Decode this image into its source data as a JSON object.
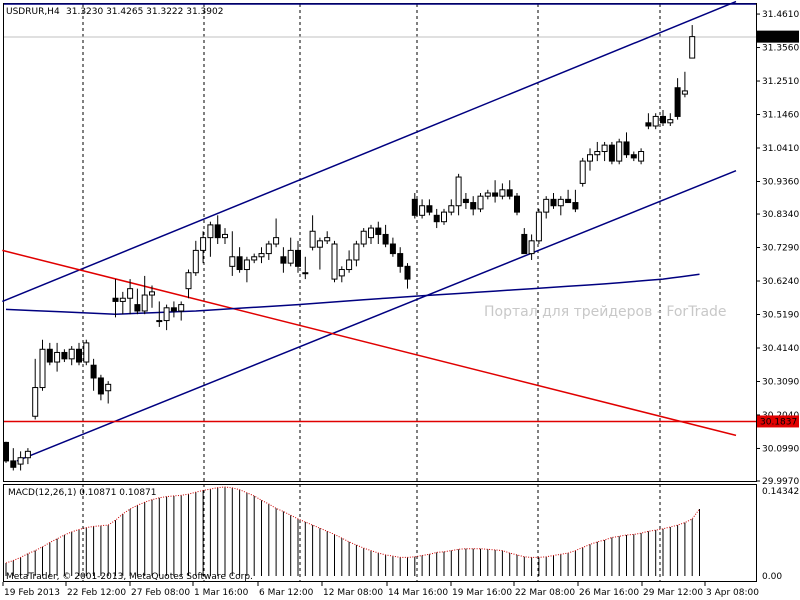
{
  "header": {
    "symbol": "USDRUR,H4",
    "ohlc": "31.3230 31.4265 31.3222 31.3902"
  },
  "watermark": "Портал для трейдеров - ForTrade",
  "copyright": "MetaTrader, © 2001-2013, MetaQuotes Software Corp.",
  "macd": {
    "label": "MACD(12,26,1) 0.10871 0.10871",
    "axis_labels": [
      "0.14342",
      "0.00"
    ]
  },
  "price_axis": {
    "labels": [
      "31.4610",
      "31.3560",
      "31.2510",
      "31.1460",
      "31.0410",
      "30.9360",
      "30.8340",
      "30.7290",
      "30.6240",
      "30.5190",
      "30.4140",
      "30.3090",
      "30.2040",
      "30.0990",
      "29.9970"
    ],
    "current_price": "31.3902",
    "hline_price": "30.1837"
  },
  "time_axis": {
    "labels": [
      "19 Feb 2013",
      "22 Feb 12:00",
      "27 Feb 08:00",
      "1 Mar 16:00",
      "6 Mar 12:00",
      "12 Mar 08:00",
      "14 Mar 16:00",
      "19 Mar 16:00",
      "22 Mar 08:00",
      "26 Mar 16:00",
      "29 Mar 12:00",
      "3 Apr 08:00"
    ]
  },
  "colors": {
    "channel": "#000080",
    "redline": "#e00000",
    "macd_bar": "#000000",
    "signal": "#cc0000",
    "grid": "#000000"
  },
  "chart_data": {
    "type": "candlestick",
    "ymin": 29.997,
    "ymax": 31.4925,
    "candles": [
      [
        30.118,
        30.12,
        30.054,
        30.06
      ],
      [
        30.06,
        30.1,
        30.03,
        30.04
      ],
      [
        30.05,
        30.09,
        30.03,
        30.07
      ],
      [
        30.07,
        30.1,
        30.05,
        30.09
      ],
      [
        30.2,
        30.38,
        30.19,
        30.29
      ],
      [
        30.29,
        30.44,
        30.28,
        30.41
      ],
      [
        30.41,
        30.43,
        30.36,
        30.37
      ],
      [
        30.37,
        30.43,
        30.34,
        30.4
      ],
      [
        30.4,
        30.41,
        30.37,
        30.38
      ],
      [
        30.38,
        30.42,
        30.36,
        30.41
      ],
      [
        30.41,
        30.43,
        30.36,
        30.37
      ],
      [
        30.37,
        30.44,
        30.36,
        30.43
      ],
      [
        30.36,
        30.38,
        30.28,
        30.32
      ],
      [
        30.32,
        30.33,
        30.25,
        30.27
      ],
      [
        30.28,
        30.31,
        30.24,
        30.3
      ],
      [
        30.57,
        30.63,
        30.51,
        30.56
      ],
      [
        30.56,
        30.59,
        30.52,
        30.57
      ],
      [
        30.57,
        30.63,
        30.52,
        30.6
      ],
      [
        30.55,
        30.6,
        30.52,
        30.53
      ],
      [
        30.53,
        30.64,
        30.52,
        30.58
      ],
      [
        30.58,
        30.61,
        30.54,
        30.59
      ],
      [
        30.5,
        30.56,
        30.48,
        30.5
      ],
      [
        30.5,
        30.55,
        30.47,
        30.54
      ],
      [
        30.54,
        30.56,
        30.51,
        30.53
      ],
      [
        30.53,
        30.56,
        30.5,
        30.55
      ],
      [
        30.6,
        30.66,
        30.57,
        30.65
      ],
      [
        30.65,
        30.75,
        30.64,
        30.72
      ],
      [
        30.72,
        30.78,
        30.68,
        30.76
      ],
      [
        30.76,
        30.81,
        30.7,
        30.8
      ],
      [
        30.8,
        30.83,
        30.74,
        30.76
      ],
      [
        30.76,
        30.79,
        30.74,
        30.77
      ],
      [
        30.67,
        30.78,
        30.64,
        30.7
      ],
      [
        30.7,
        30.73,
        30.65,
        30.66
      ],
      [
        30.66,
        30.7,
        30.62,
        30.69
      ],
      [
        30.69,
        30.71,
        30.68,
        30.7
      ],
      [
        30.7,
        30.73,
        30.68,
        30.71
      ],
      [
        30.71,
        30.75,
        30.69,
        30.74
      ],
      [
        30.74,
        30.82,
        30.73,
        30.76
      ],
      [
        30.7,
        30.73,
        30.65,
        30.68
      ],
      [
        30.68,
        30.76,
        30.67,
        30.72
      ],
      [
        30.72,
        30.75,
        30.65,
        30.67
      ],
      [
        30.65,
        30.7,
        30.63,
        30.65
      ],
      [
        30.73,
        30.83,
        30.72,
        30.78
      ],
      [
        30.73,
        30.76,
        30.66,
        30.75
      ],
      [
        30.75,
        30.78,
        30.74,
        30.76
      ],
      [
        30.63,
        30.75,
        30.62,
        30.74
      ],
      [
        30.64,
        30.67,
        30.62,
        30.66
      ],
      [
        30.66,
        30.72,
        30.65,
        30.69
      ],
      [
        30.69,
        30.75,
        30.67,
        30.74
      ],
      [
        30.74,
        30.79,
        30.73,
        30.78
      ],
      [
        30.76,
        30.8,
        30.74,
        30.79
      ],
      [
        30.79,
        30.81,
        30.74,
        30.77
      ],
      [
        30.77,
        30.8,
        30.73,
        30.74
      ],
      [
        30.74,
        30.76,
        30.7,
        30.71
      ],
      [
        30.71,
        30.73,
        30.65,
        30.67
      ],
      [
        30.67,
        30.68,
        30.6,
        30.63
      ],
      [
        30.88,
        30.9,
        30.82,
        30.83
      ],
      [
        30.83,
        30.88,
        30.82,
        30.86
      ],
      [
        30.86,
        30.88,
        30.83,
        30.84
      ],
      [
        30.83,
        30.85,
        30.79,
        30.81
      ],
      [
        30.81,
        30.85,
        30.8,
        30.84
      ],
      [
        30.84,
        30.88,
        30.83,
        30.86
      ],
      [
        30.86,
        30.96,
        30.83,
        30.95
      ],
      [
        30.88,
        30.9,
        30.85,
        30.87
      ],
      [
        30.87,
        30.89,
        30.83,
        30.85
      ],
      [
        30.85,
        30.9,
        30.84,
        30.89
      ],
      [
        30.89,
        30.91,
        30.88,
        30.9
      ],
      [
        30.9,
        30.94,
        30.87,
        30.89
      ],
      [
        30.89,
        30.93,
        30.88,
        30.91
      ],
      [
        30.91,
        30.94,
        30.88,
        30.89
      ],
      [
        30.89,
        30.9,
        30.83,
        30.84
      ],
      [
        30.77,
        30.79,
        30.71,
        30.71
      ],
      [
        30.71,
        30.77,
        30.69,
        30.75
      ],
      [
        30.75,
        30.85,
        30.74,
        30.84
      ],
      [
        30.84,
        30.89,
        30.82,
        30.88
      ],
      [
        30.88,
        30.9,
        30.85,
        30.86
      ],
      [
        30.86,
        30.89,
        30.83,
        30.88
      ],
      [
        30.88,
        30.91,
        30.87,
        30.87
      ],
      [
        30.87,
        30.91,
        30.84,
        30.85
      ],
      [
        30.93,
        31.01,
        30.92,
        31.0
      ],
      [
        31.0,
        31.04,
        30.97,
        31.02
      ],
      [
        31.02,
        31.06,
        31.0,
        31.03
      ],
      [
        31.03,
        31.06,
        31.0,
        31.05
      ],
      [
        31.05,
        31.06,
        30.99,
        31.0
      ],
      [
        31.0,
        31.07,
        30.99,
        31.06
      ],
      [
        31.06,
        31.09,
        31.01,
        31.02
      ],
      [
        31.02,
        31.03,
        31.0,
        31.01
      ],
      [
        31.0,
        31.04,
        30.99,
        31.03
      ],
      [
        31.12,
        31.15,
        31.1,
        31.11
      ],
      [
        31.11,
        31.15,
        31.1,
        31.14
      ],
      [
        31.14,
        31.16,
        31.11,
        31.12
      ],
      [
        31.12,
        31.15,
        31.11,
        31.13
      ],
      [
        31.23,
        31.26,
        31.13,
        31.14
      ],
      [
        31.21,
        31.28,
        31.2,
        31.22
      ],
      [
        31.323,
        31.4265,
        31.3222,
        31.3902
      ]
    ],
    "macd_values": [
      0.021,
      0.025,
      0.03,
      0.036,
      0.041,
      0.047,
      0.054,
      0.06,
      0.066,
      0.071,
      0.075,
      0.078,
      0.08,
      0.081,
      0.082,
      0.09,
      0.1,
      0.108,
      0.114,
      0.119,
      0.123,
      0.126,
      0.128,
      0.129,
      0.13,
      0.132,
      0.135,
      0.138,
      0.14,
      0.1425,
      0.1434,
      0.142,
      0.139,
      0.134,
      0.129,
      0.122,
      0.116,
      0.109,
      0.104,
      0.098,
      0.092,
      0.087,
      0.082,
      0.077,
      0.072,
      0.067,
      0.061,
      0.055,
      0.05,
      0.045,
      0.041,
      0.037,
      0.034,
      0.032,
      0.03,
      0.03,
      0.031,
      0.033,
      0.035,
      0.038,
      0.039,
      0.041,
      0.043,
      0.044,
      0.044,
      0.044,
      0.043,
      0.042,
      0.041,
      0.037,
      0.034,
      0.031,
      0.03,
      0.03,
      0.031,
      0.033,
      0.035,
      0.037,
      0.041,
      0.046,
      0.051,
      0.055,
      0.058,
      0.062,
      0.064,
      0.066,
      0.067,
      0.069,
      0.072,
      0.074,
      0.076,
      0.079,
      0.082,
      0.086,
      0.092,
      0.108
    ],
    "ma_line": [
      [
        0,
        30.535
      ],
      [
        15,
        30.52
      ],
      [
        26,
        30.53
      ],
      [
        40,
        30.55
      ],
      [
        52,
        30.57
      ],
      [
        62,
        30.585
      ],
      [
        72,
        30.6
      ],
      [
        82,
        30.615
      ],
      [
        90,
        30.63
      ],
      [
        95,
        30.645
      ]
    ],
    "channel_upper": [
      [
        -0.5,
        30.56
      ],
      [
        100,
        31.5
      ]
    ],
    "channel_lower": [
      [
        1.5,
        30.06
      ],
      [
        100,
        30.97
      ]
    ],
    "red_trend": [
      [
        -0.5,
        30.72
      ],
      [
        100,
        30.14
      ]
    ],
    "hline": 30.1837
  }
}
